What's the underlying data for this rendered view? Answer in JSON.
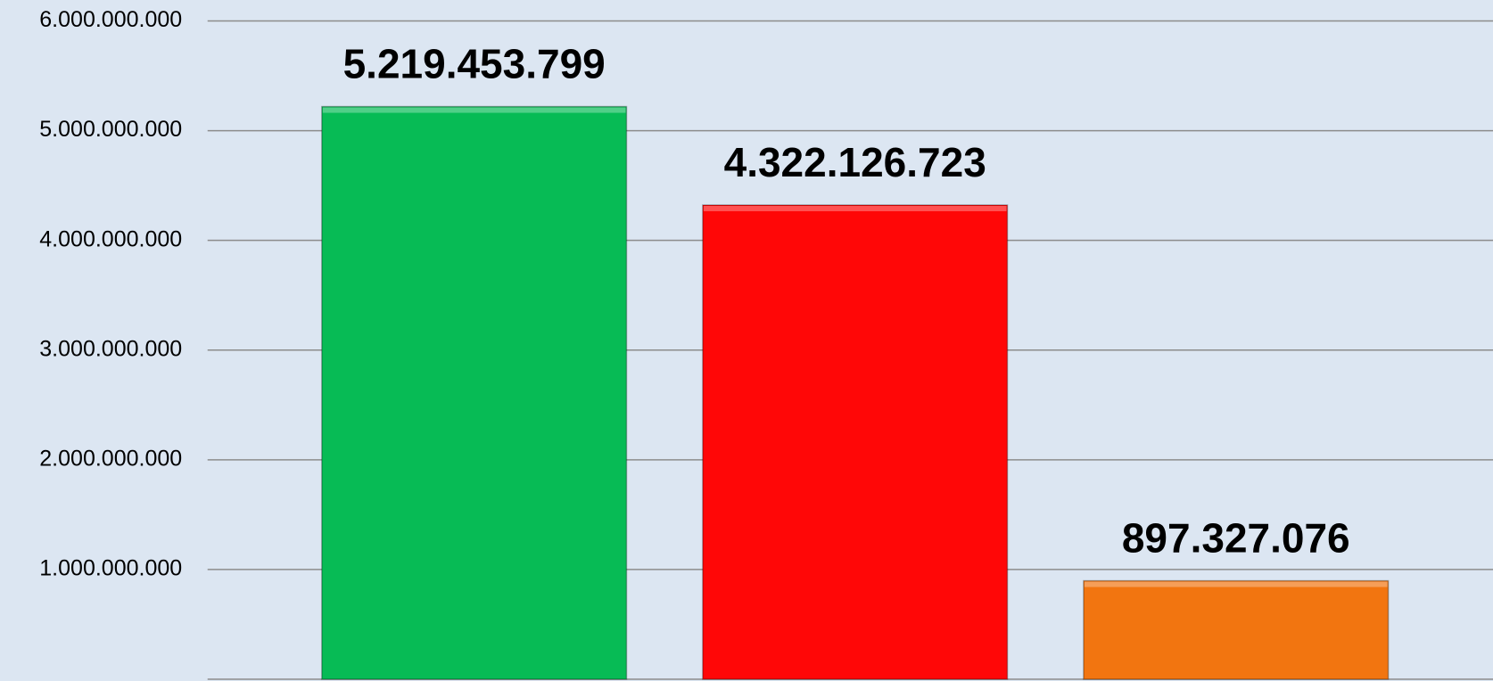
{
  "chart_data": {
    "type": "bar",
    "categories": [
      null,
      null,
      null
    ],
    "values": [
      5219453799,
      4322126723,
      897327076
    ],
    "value_labels": [
      "5.219.453.799",
      "4.322.126.723",
      "897.327.076"
    ],
    "colors": [
      "#07bb55",
      "#ff0707",
      "#f27510"
    ],
    "ylim": [
      0,
      6000000000
    ],
    "yticks": [
      {
        "value": 1000000000,
        "label": "1.000.000.000"
      },
      {
        "value": 2000000000,
        "label": "2.000.000.000"
      },
      {
        "value": 3000000000,
        "label": "3.000.000.000"
      },
      {
        "value": 4000000000,
        "label": "4.000.000.000"
      },
      {
        "value": 5000000000,
        "label": "5.000.000.000"
      },
      {
        "value": 6000000000,
        "label": "6.000.000.000"
      }
    ],
    "grid": true
  }
}
